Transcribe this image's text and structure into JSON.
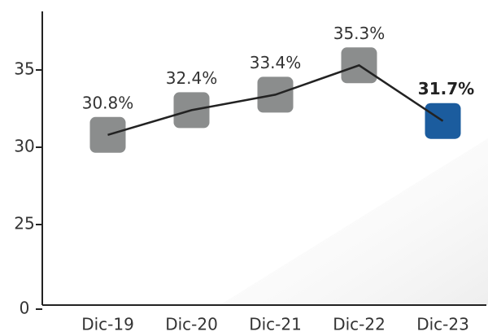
{
  "chart_data": {
    "type": "line",
    "categories": [
      "Dic-19",
      "Dic-20",
      "Dic-21",
      "Dic-22",
      "Dic-23"
    ],
    "values": [
      30.8,
      32.4,
      33.4,
      35.3,
      31.7
    ],
    "value_labels": [
      "30.8%",
      "32.4%",
      "33.4%",
      "35.3%",
      "31.7%"
    ],
    "colors": [
      "#8b8d8d",
      "#8b8d8d",
      "#8b8d8d",
      "#8b8d8d",
      "#1b5c9e"
    ],
    "line_color": "#222222",
    "ylim": [
      0,
      38.5
    ],
    "yticks": [
      0,
      25,
      30,
      35
    ]
  }
}
